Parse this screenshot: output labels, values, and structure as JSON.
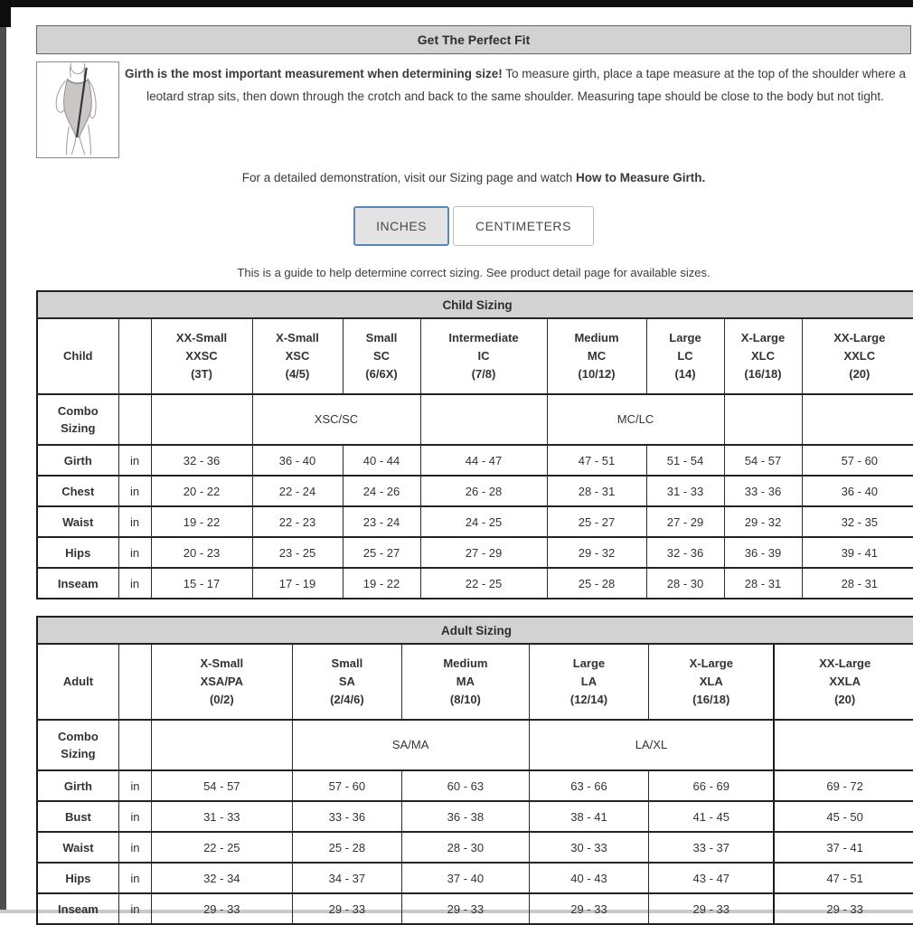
{
  "header": {
    "title": "Get The Perfect Fit"
  },
  "intro": {
    "bold": "Girth is the most important measurement when determining size!",
    "rest": " To measure girth, place a tape measure at the top of the shoulder where a leotard strap sits, then down through the crotch and back to the same shoulder. Measuring tape should be close to the body but not tight."
  },
  "demo": {
    "text": "For a detailed demonstration, visit our Sizing page and watch ",
    "bold": "How to Measure Girth."
  },
  "unit_toggle": {
    "inches": "INCHES",
    "centimeters": "CENTIMETERS",
    "selected": "INCHES"
  },
  "note": "This is a guide to help determine correct sizing. See product detail page for available sizes.",
  "icons": {
    "figure": "leotard-girth-measurement-diagram"
  },
  "colors": {
    "accent_blue": "#5b87b8",
    "bar_gray": "#d2d2d2",
    "selected_button_bg": "#e3e3e3"
  },
  "tables": [
    {
      "id": "child",
      "title": "Child Sizing",
      "corner_label": "Child",
      "combo_label": "Combo Sizing",
      "unit": "in",
      "columns": [
        [
          "XX-Small",
          "XXSC",
          "(3T)"
        ],
        [
          "X-Small",
          "XSC",
          "(4/5)"
        ],
        [
          "Small",
          "SC",
          "(6/6X)"
        ],
        [
          "Intermediate",
          "IC",
          "(7/8)"
        ],
        [
          "Medium",
          "MC",
          "(10/12)"
        ],
        [
          "Large",
          "LC",
          "(14)"
        ],
        [
          "X-Large",
          "XLC",
          "(16/18)"
        ],
        [
          "XX-Large",
          "XXLC",
          "(20)"
        ]
      ],
      "combo_cells": [
        {
          "span": 1,
          "label": ""
        },
        {
          "span": 2,
          "label": "XSC/SC"
        },
        {
          "span": 1,
          "label": ""
        },
        {
          "span": 2,
          "label": "MC/LC"
        },
        {
          "span": 1,
          "label": ""
        },
        {
          "span": 1,
          "label": ""
        }
      ],
      "rows": [
        {
          "label": "Girth",
          "values": [
            "32 - 36",
            "36 - 40",
            "40 - 44",
            "44 - 47",
            "47 - 51",
            "51 - 54",
            "54 - 57",
            "57 - 60"
          ]
        },
        {
          "label": "Chest",
          "values": [
            "20 - 22",
            "22 - 24",
            "24 - 26",
            "26 - 28",
            "28 - 31",
            "31 - 33",
            "33 - 36",
            "36 - 40"
          ]
        },
        {
          "label": "Waist",
          "values": [
            "19 - 22",
            "22 - 23",
            "23 - 24",
            "24 - 25",
            "25 - 27",
            "27 - 29",
            "29 - 32",
            "32 - 35"
          ]
        },
        {
          "label": "Hips",
          "values": [
            "20 - 23",
            "23 - 25",
            "25 - 27",
            "27 - 29",
            "29 - 32",
            "32 - 36",
            "36 - 39",
            "39 - 41"
          ]
        },
        {
          "label": "Inseam",
          "values": [
            "15 - 17",
            "17 - 19",
            "19 - 22",
            "22 - 25",
            "25 - 28",
            "28 - 30",
            "28 - 31",
            "28 - 31"
          ]
        }
      ]
    },
    {
      "id": "adult",
      "title": "Adult Sizing",
      "corner_label": "Adult",
      "combo_label": "Combo Sizing",
      "unit": "in",
      "columns": [
        [
          "X-Small",
          "XSA/PA",
          "(0/2)"
        ],
        [
          "Small",
          "SA",
          "(2/4/6)"
        ],
        [
          "Medium",
          "MA",
          "(8/10)"
        ],
        [
          "Large",
          "LA",
          "(12/14)"
        ],
        [
          "X-Large",
          "XLA",
          "(16/18)"
        ],
        [
          "XX-Large",
          "XXLA",
          "(20)"
        ]
      ],
      "combo_cells": [
        {
          "span": 1,
          "label": ""
        },
        {
          "span": 2,
          "label": "SA/MA"
        },
        {
          "span": 2,
          "label": "LA/XL"
        },
        {
          "span": 1,
          "label": ""
        }
      ],
      "rows": [
        {
          "label": "Girth",
          "values": [
            "54 - 57",
            "57 - 60",
            "60 - 63",
            "63 - 66",
            "66 - 69",
            "69 - 72"
          ]
        },
        {
          "label": "Bust",
          "values": [
            "31 - 33",
            "33 - 36",
            "36 - 38",
            "38 - 41",
            "41 - 45",
            "45 - 50"
          ]
        },
        {
          "label": "Waist",
          "values": [
            "22 - 25",
            "25 - 28",
            "28 - 30",
            "30 - 33",
            "33 - 37",
            "37 - 41"
          ]
        },
        {
          "label": "Hips",
          "values": [
            "32 - 34",
            "34 - 37",
            "37 - 40",
            "40 - 43",
            "43 - 47",
            "47 - 51"
          ]
        },
        {
          "label": "Inseam",
          "values": [
            "29 - 33",
            "29 - 33",
            "29 - 33",
            "29 - 33",
            "29 - 33",
            "29 - 33"
          ]
        }
      ]
    }
  ]
}
